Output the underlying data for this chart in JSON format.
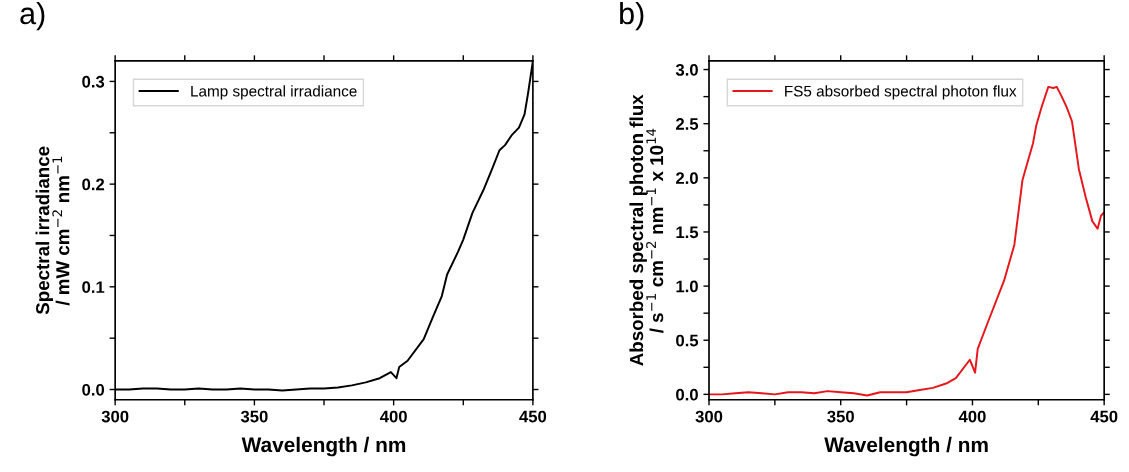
{
  "chart_data": [
    {
      "type": "line",
      "title": "a)",
      "xlabel": "Wavelength / nm",
      "ylabel": "Spectral irradiance\n/ mW cm$^{−2}$ nm$^{−1}$",
      "legend": "top left",
      "grid": false,
      "xlim": [
        300,
        450
      ],
      "xticks": [
        300,
        {
          "value": 325,
          "label": null
        },
        350,
        {
          "value": 375,
          "label": null
        },
        400,
        {
          "value": 425,
          "label": null
        },
        450
      ],
      "ylim": [
        -0.01,
        0.32
      ],
      "yticks": [
        {
          "value": 0,
          "label": "0.0"
        },
        {
          "value": 0.05,
          "label": null
        },
        0.1,
        {
          "value": 0.15,
          "label": null
        },
        0.2,
        {
          "value": 0.25,
          "label": null
        },
        0.3
      ],
      "series": [
        {
          "name": "Lamp spectral irradiance",
          "color": "#000000",
          "x": [
            300,
            305,
            310,
            315,
            320,
            325,
            330,
            335,
            340,
            345,
            350,
            355,
            360,
            365,
            370,
            375,
            380,
            385,
            390,
            395,
            399,
            401,
            402,
            405,
            410.8,
            414,
            417.3,
            419.2,
            423.1,
            425,
            428.3,
            432.2,
            435.4,
            438,
            440,
            442.5,
            445,
            447,
            448.3,
            450
          ],
          "values": [
            0.0,
            0.0,
            0.001,
            0.001,
            0.0,
            0.0,
            0.001,
            0.0,
            0.0,
            0.001,
            0.0,
            0.0,
            -0.001,
            0.0,
            0.001,
            0.001,
            0.002,
            0.004,
            0.007,
            0.011,
            0.017,
            0.011,
            0.022,
            0.028,
            0.049,
            0.07,
            0.091,
            0.112,
            0.134,
            0.146,
            0.172,
            0.194,
            0.215,
            0.233,
            0.238,
            0.248,
            0.255,
            0.268,
            0.289,
            0.32
          ]
        }
      ]
    },
    {
      "type": "line",
      "title": "b)",
      "xlabel": "Wavelength / nm",
      "ylabel": "Absorbed spectral photon flux\n/ s$^{−1}$ cm$^{−2}$ nm$^{−1}$ x 10$^{14}$",
      "legend": "top left",
      "grid": false,
      "xlim": [
        300,
        450
      ],
      "xticks": [
        300,
        {
          "value": 325,
          "label": null
        },
        350,
        {
          "value": 375,
          "label": null
        },
        400,
        {
          "value": 425,
          "label": null
        },
        450
      ],
      "ylim": [
        -0.05,
        3.08
      ],
      "yticks": [
        {
          "value": 0,
          "label": "0.0"
        },
        {
          "value": 0.25,
          "label": null
        },
        0.5,
        {
          "value": 0.75,
          "label": null
        },
        {
          "value": 1,
          "label": "1.0"
        },
        {
          "value": 1.25,
          "label": null
        },
        1.5,
        {
          "value": 1.75,
          "label": null
        },
        {
          "value": 2,
          "label": "2.0"
        },
        {
          "value": 2.25,
          "label": null
        },
        2.5,
        {
          "value": 2.75,
          "label": null
        },
        {
          "value": 3,
          "label": "3.0"
        }
      ],
      "series": [
        {
          "name": "FS5 absorbed spectral photon flux",
          "color": "#e8161b",
          "x": [
            300,
            305,
            310,
            315,
            320,
            325,
            330,
            335,
            340,
            345,
            350,
            355,
            360,
            365,
            370,
            375,
            380,
            385,
            390,
            393.7,
            399,
            401,
            402,
            405.6,
            412,
            415.9,
            419,
            421,
            423,
            424.2,
            426.2,
            428.8,
            430.7,
            432,
            433.9,
            435.8,
            437.8,
            440.4,
            443,
            445.5,
            447.5,
            448.8,
            450
          ],
          "values": [
            0.0,
            0.0,
            0.01,
            0.02,
            0.01,
            0.0,
            0.02,
            0.02,
            0.01,
            0.03,
            0.02,
            0.01,
            -0.01,
            0.02,
            0.02,
            0.02,
            0.04,
            0.06,
            0.1,
            0.15,
            0.32,
            0.2,
            0.42,
            0.65,
            1.05,
            1.38,
            1.98,
            2.15,
            2.32,
            2.48,
            2.65,
            2.84,
            2.83,
            2.84,
            2.75,
            2.65,
            2.52,
            2.08,
            1.82,
            1.6,
            1.53,
            1.65,
            1.68
          ]
        }
      ]
    }
  ]
}
